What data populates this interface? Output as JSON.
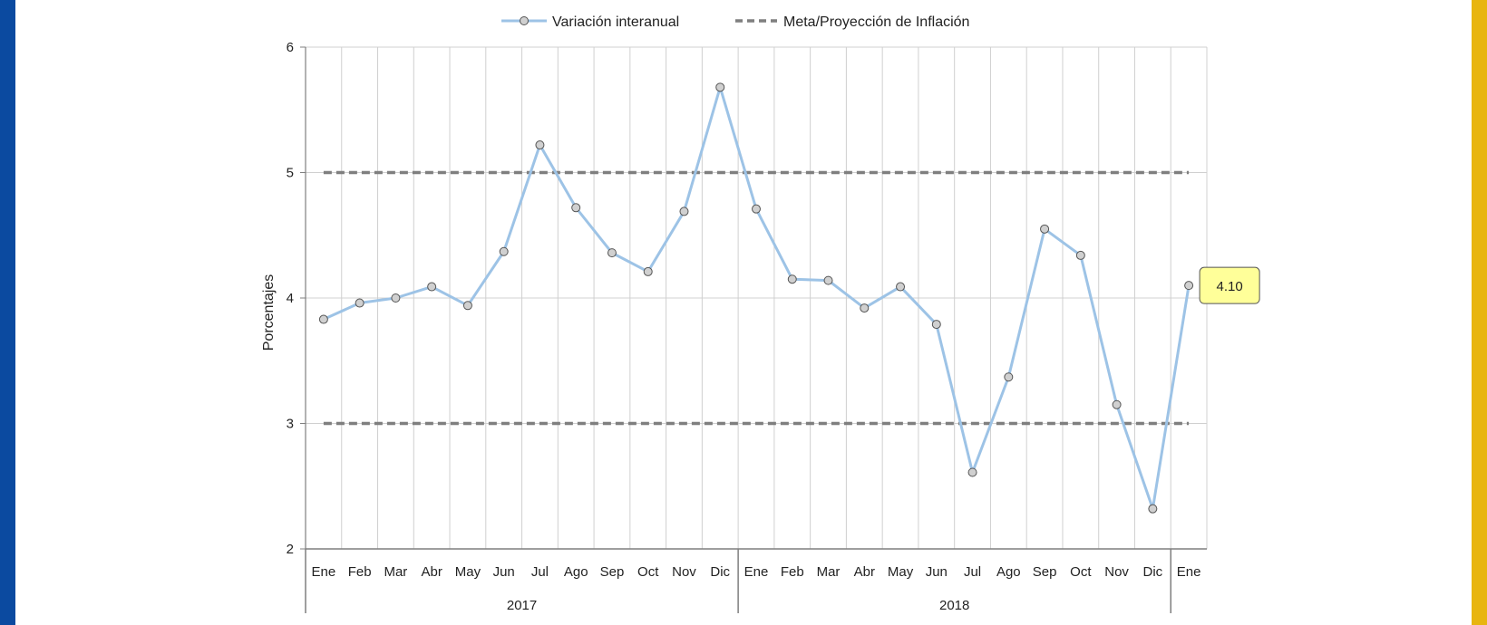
{
  "colors": {
    "left_bar": "#0b4aa0",
    "right_bar": "#e8b510",
    "series_line": "#9dc3e6",
    "marker_fill": "#d0d0d0",
    "marker_stroke": "#555555",
    "meta_line": "#7f7f7f",
    "grid": "#d0d0d0",
    "axis": "#7f7f7f",
    "callout_fill": "#ffff99",
    "callout_stroke": "#555555"
  },
  "chart_data": {
    "type": "line",
    "ylabel": "Porcentajes",
    "xlabel": "",
    "ylim": [
      2,
      6
    ],
    "y_ticks": [
      2,
      3,
      4,
      5,
      6
    ],
    "grid": true,
    "legend_position": "top",
    "legend": [
      "Variación interanual",
      "Meta/Proyección de Inflación"
    ],
    "categories": [
      "Ene",
      "Feb",
      "Mar",
      "Abr",
      "May",
      "Jun",
      "Jul",
      "Ago",
      "Sep",
      "Oct",
      "Nov",
      "Dic",
      "Ene",
      "Feb",
      "Mar",
      "Abr",
      "May",
      "Jun",
      "Jul",
      "Ago",
      "Sep",
      "Oct",
      "Nov",
      "Dic",
      "Ene"
    ],
    "year_groups": [
      {
        "label": "2017",
        "count": 12
      },
      {
        "label": "2018",
        "count": 12
      },
      {
        "label": "",
        "count": 1
      }
    ],
    "series": [
      {
        "name": "Variación interanual",
        "values": [
          3.83,
          3.96,
          4.0,
          4.09,
          3.94,
          4.37,
          5.22,
          4.72,
          4.36,
          4.21,
          4.69,
          5.68,
          4.71,
          4.15,
          4.14,
          3.92,
          4.09,
          3.79,
          2.61,
          3.37,
          4.55,
          4.34,
          3.15,
          2.32,
          4.1
        ]
      },
      {
        "name": "Meta/Proyección de Inflación",
        "upper": 5,
        "lower": 3
      }
    ],
    "annotation": {
      "category_index": 24,
      "text": "4.10"
    }
  }
}
